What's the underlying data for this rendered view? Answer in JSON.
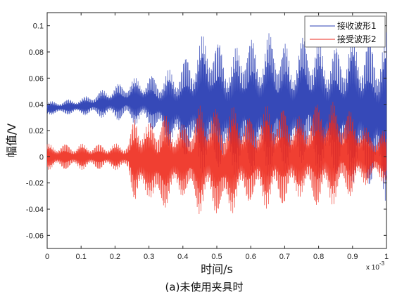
{
  "chart_data": {
    "type": "line",
    "ylabel": "幅值/V",
    "xlabel": "时间/s",
    "caption": "(a)未使用夹具时",
    "x_multiplier": "x 10",
    "x_multiplier_exp": "-3",
    "xlim": [
      0,
      1
    ],
    "ylim": [
      -0.07,
      0.11
    ],
    "x_ticks": [
      "0",
      "0.1",
      "0.2",
      "0.3",
      "0.4",
      "0.5",
      "0.6",
      "0.7",
      "0.8",
      "0.9",
      "1"
    ],
    "y_ticks": [
      "0.1",
      "0.08",
      "0.06",
      "0.04",
      "0.02",
      "0",
      "-0.02",
      "-0.04",
      "-0.06"
    ],
    "legend_position": "top-right",
    "series": [
      {
        "name": "接收波形1",
        "color": "#2b3fb4",
        "baseline": 0.038,
        "x": [
          0,
          0.1,
          0.15,
          0.2,
          0.25,
          0.3,
          0.35,
          0.4,
          0.45,
          0.48,
          0.5,
          0.55,
          0.58,
          0.62,
          0.67,
          0.72,
          0.76,
          0.8,
          0.85,
          0.9,
          0.95,
          1.0
        ],
        "max": [
          0.042,
          0.045,
          0.05,
          0.055,
          0.06,
          0.062,
          0.065,
          0.075,
          0.09,
          0.102,
          0.09,
          0.08,
          0.1,
          0.085,
          0.1,
          0.08,
          0.095,
          0.09,
          0.085,
          0.095,
          0.092,
          0.095
        ],
        "min": [
          0.032,
          0.032,
          0.03,
          0.028,
          0.025,
          0.022,
          0.01,
          0.0,
          -0.01,
          -0.02,
          -0.01,
          -0.015,
          -0.02,
          -0.01,
          -0.02,
          -0.01,
          -0.005,
          -0.02,
          -0.015,
          -0.02,
          -0.025,
          -0.035
        ]
      },
      {
        "name": "接受波形2",
        "color": "#ee2a1c",
        "baseline": 0.0,
        "x": [
          0,
          0.1,
          0.15,
          0.2,
          0.24,
          0.26,
          0.3,
          0.33,
          0.36,
          0.4,
          0.45,
          0.48,
          0.52,
          0.56,
          0.6,
          0.65,
          0.7,
          0.75,
          0.78,
          0.82,
          0.86,
          0.9,
          0.95,
          1.0
        ],
        "max": [
          0.01,
          0.01,
          0.01,
          0.01,
          0.012,
          0.035,
          0.025,
          0.038,
          0.03,
          0.025,
          0.04,
          0.04,
          0.035,
          0.04,
          0.03,
          0.04,
          0.038,
          0.03,
          0.04,
          0.045,
          0.04,
          0.035,
          0.02,
          0.02
        ],
        "min": [
          -0.01,
          -0.01,
          -0.01,
          -0.01,
          -0.012,
          -0.04,
          -0.03,
          -0.048,
          -0.035,
          -0.03,
          -0.045,
          -0.04,
          -0.05,
          -0.04,
          -0.035,
          -0.04,
          -0.038,
          -0.03,
          -0.038,
          -0.04,
          -0.035,
          -0.03,
          -0.02,
          -0.02
        ]
      }
    ]
  }
}
